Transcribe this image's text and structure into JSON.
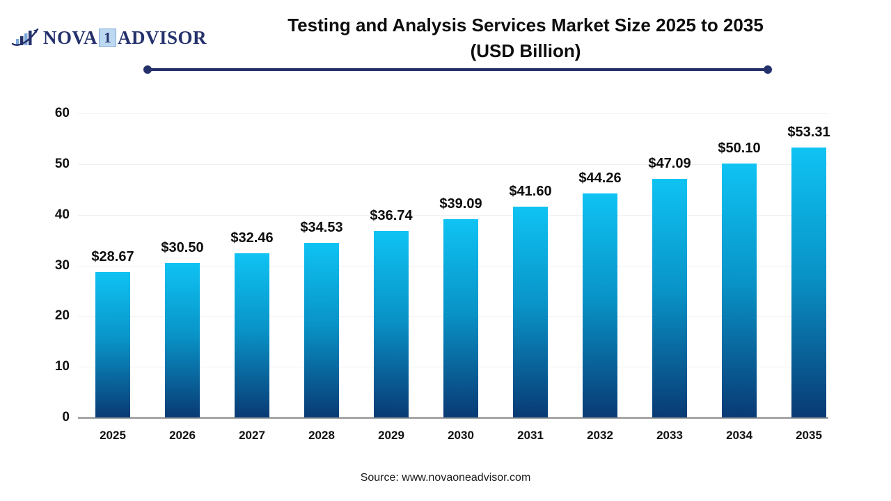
{
  "logo": {
    "part1": "NOVA",
    "badge": "1",
    "part2": "ADVISOR"
  },
  "title": {
    "line1": "Testing and Analysis Services Market Size 2025 to 2035",
    "line2": "(USD Billion)"
  },
  "source": {
    "text": "Source: www.novaoneadvisor.com"
  },
  "colors": {
    "brand_navy": "#24316B",
    "bar_top": "#0FC3F3",
    "bar_mid": "#0993C7",
    "bar_bottom": "#093A74",
    "baseline": "#A6A6A6",
    "gridline": "#F1F1F1",
    "label_black": "#0d0d0d"
  },
  "chart_data": {
    "type": "bar",
    "title": "Testing and Analysis Services Market Size 2025 to 2035 (USD Billion)",
    "categories": [
      "2025",
      "2026",
      "2027",
      "2028",
      "2029",
      "2030",
      "2031",
      "2032",
      "2033",
      "2034",
      "2035"
    ],
    "values": [
      28.67,
      30.5,
      32.46,
      34.53,
      36.74,
      39.09,
      41.6,
      44.26,
      47.09,
      50.1,
      53.31
    ],
    "value_labels": [
      "$28.67",
      "$30.50",
      "$32.46",
      "$34.53",
      "$36.74",
      "$39.09",
      "$41.60",
      "$44.26",
      "$47.09",
      "$50.10",
      "$53.31"
    ],
    "xlabel": "",
    "ylabel": "",
    "ylim": [
      0,
      60
    ],
    "yticks": [
      0,
      10,
      20,
      30,
      40,
      50,
      60
    ],
    "grid": true,
    "legend": "none",
    "bar_gradient": [
      "#0FC3F3",
      "#0993C7",
      "#093A74"
    ]
  }
}
